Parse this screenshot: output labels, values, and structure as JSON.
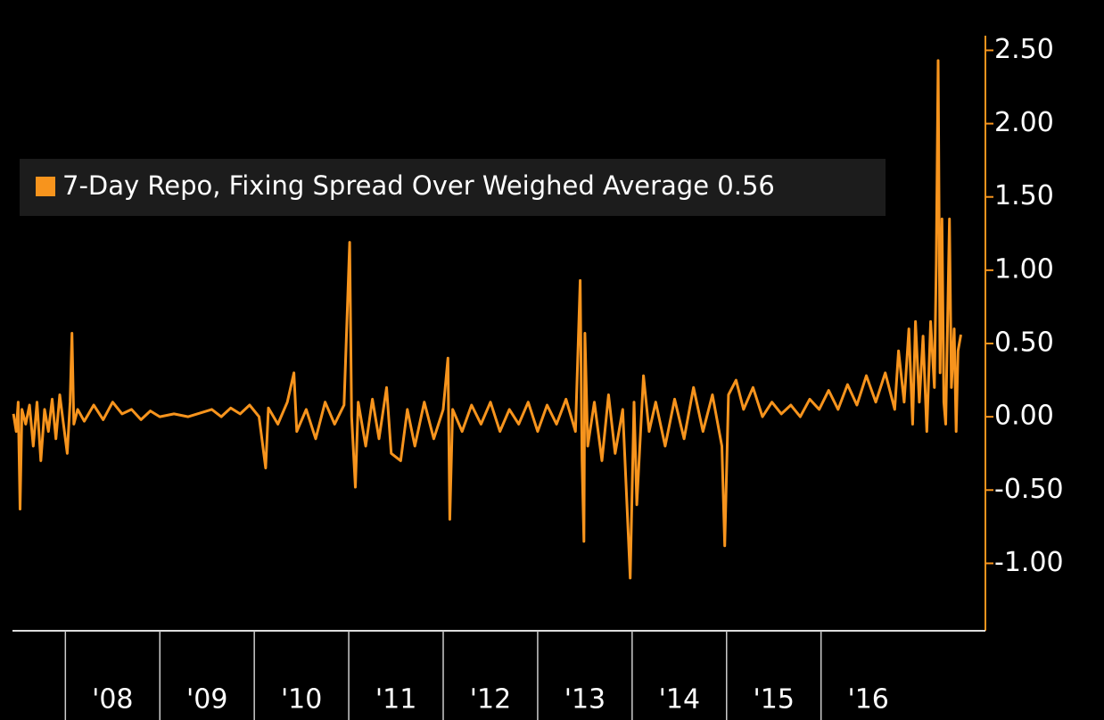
{
  "chart_data": {
    "type": "line",
    "x": [
      2007.45,
      2007.48,
      2007.5,
      2007.52,
      2007.54,
      2007.58,
      2007.62,
      2007.66,
      2007.7,
      2007.74,
      2007.78,
      2007.82,
      2007.86,
      2007.9,
      2007.94,
      2007.98,
      2008.02,
      2008.05,
      2008.07,
      2008.09,
      2008.13,
      2008.2,
      2008.3,
      2008.4,
      2008.5,
      2008.6,
      2008.7,
      2008.8,
      2008.9,
      2009.0,
      2009.15,
      2009.3,
      2009.45,
      2009.55,
      2009.65,
      2009.75,
      2009.85,
      2009.95,
      2010.05,
      2010.12,
      2010.15,
      2010.25,
      2010.35,
      2010.42,
      2010.45,
      2010.55,
      2010.65,
      2010.75,
      2010.85,
      2010.95,
      2011.01,
      2011.03,
      2011.07,
      2011.1,
      2011.18,
      2011.25,
      2011.32,
      2011.4,
      2011.45,
      2011.55,
      2011.62,
      2011.7,
      2011.8,
      2011.9,
      2012.0,
      2012.05,
      2012.07,
      2012.1,
      2012.2,
      2012.3,
      2012.4,
      2012.5,
      2012.6,
      2012.7,
      2012.8,
      2012.9,
      2013.0,
      2013.1,
      2013.2,
      2013.3,
      2013.4,
      2013.45,
      2013.47,
      2013.49,
      2013.5,
      2013.53,
      2013.6,
      2013.68,
      2013.75,
      2013.82,
      2013.9,
      2013.98,
      2014.02,
      2014.05,
      2014.12,
      2014.18,
      2014.25,
      2014.35,
      2014.45,
      2014.55,
      2014.65,
      2014.75,
      2014.85,
      2014.95,
      2014.98,
      2015.02,
      2015.1,
      2015.18,
      2015.28,
      2015.38,
      2015.48,
      2015.58,
      2015.68,
      2015.78,
      2015.88,
      2015.98,
      2016.08,
      2016.18,
      2016.28,
      2016.38,
      2016.48,
      2016.58,
      2016.68,
      2016.78,
      2016.82,
      2016.88,
      2016.93,
      2016.97,
      2017.0,
      2017.04,
      2017.08,
      2017.12,
      2017.16,
      2017.2,
      2017.22,
      2017.24,
      2017.26,
      2017.28,
      2017.3,
      2017.32,
      2017.36,
      2017.38,
      2017.41,
      2017.43,
      2017.45,
      2017.48
    ],
    "series": [
      {
        "name": "7-Day Repo, Fixing Spread Over Weighed Average",
        "color": "#f7941d",
        "last_value": 0.56,
        "values": [
          0.02,
          -0.1,
          0.1,
          -0.63,
          0.05,
          -0.05,
          0.08,
          -0.2,
          0.1,
          -0.3,
          0.05,
          -0.1,
          0.12,
          -0.15,
          0.15,
          -0.05,
          -0.25,
          0.1,
          0.57,
          -0.05,
          0.05,
          -0.03,
          0.08,
          -0.02,
          0.1,
          0.02,
          0.05,
          -0.02,
          0.04,
          0.0,
          0.02,
          0.0,
          0.03,
          0.05,
          0.0,
          0.06,
          0.02,
          0.08,
          0.0,
          -0.35,
          0.06,
          -0.05,
          0.1,
          0.3,
          -0.1,
          0.05,
          -0.15,
          0.1,
          -0.05,
          0.08,
          1.19,
          0.0,
          -0.48,
          0.1,
          -0.2,
          0.12,
          -0.15,
          0.2,
          -0.25,
          -0.3,
          0.05,
          -0.2,
          0.1,
          -0.15,
          0.05,
          0.4,
          -0.7,
          0.05,
          -0.1,
          0.08,
          -0.05,
          0.1,
          -0.1,
          0.05,
          -0.05,
          0.1,
          -0.1,
          0.08,
          -0.05,
          0.12,
          -0.1,
          0.93,
          -0.3,
          -0.85,
          0.57,
          -0.2,
          0.1,
          -0.3,
          0.15,
          -0.25,
          0.05,
          -1.1,
          0.1,
          -0.6,
          0.28,
          -0.1,
          0.1,
          -0.2,
          0.12,
          -0.15,
          0.2,
          -0.1,
          0.15,
          -0.2,
          -0.88,
          0.15,
          0.25,
          0.05,
          0.2,
          0.0,
          0.1,
          0.02,
          0.08,
          0.0,
          0.12,
          0.05,
          0.18,
          0.05,
          0.22,
          0.08,
          0.28,
          0.1,
          0.3,
          0.05,
          0.45,
          0.1,
          0.6,
          -0.05,
          0.65,
          0.1,
          0.55,
          -0.1,
          0.65,
          0.2,
          1.05,
          2.43,
          0.3,
          1.35,
          0.1,
          -0.05,
          1.35,
          0.2,
          0.6,
          -0.1,
          0.45,
          0.56
        ]
      }
    ],
    "xlim": [
      2007.44,
      2017.74
    ],
    "xticks": [
      {
        "value": 2008,
        "label": "'08"
      },
      {
        "value": 2009,
        "label": "'09"
      },
      {
        "value": 2010,
        "label": "'10"
      },
      {
        "value": 2011,
        "label": "'11"
      },
      {
        "value": 2012,
        "label": "'12"
      },
      {
        "value": 2013,
        "label": "'13"
      },
      {
        "value": 2014,
        "label": "'14"
      },
      {
        "value": 2015,
        "label": "'15"
      },
      {
        "value": 2016,
        "label": "'16"
      }
    ],
    "ylim": [
      -1.46,
      2.6
    ],
    "yticks": [
      {
        "value": -1,
        "label": "-1.00"
      },
      {
        "value": -0.5,
        "label": "-0.50"
      },
      {
        "value": 0,
        "label": "0.00"
      },
      {
        "value": 0.5,
        "label": "0.50"
      },
      {
        "value": 1,
        "label": "1.00"
      },
      {
        "value": 1.5,
        "label": "1.50"
      },
      {
        "value": 2,
        "label": "2.00"
      },
      {
        "value": 2.5,
        "label": "2.50"
      }
    ]
  }
}
